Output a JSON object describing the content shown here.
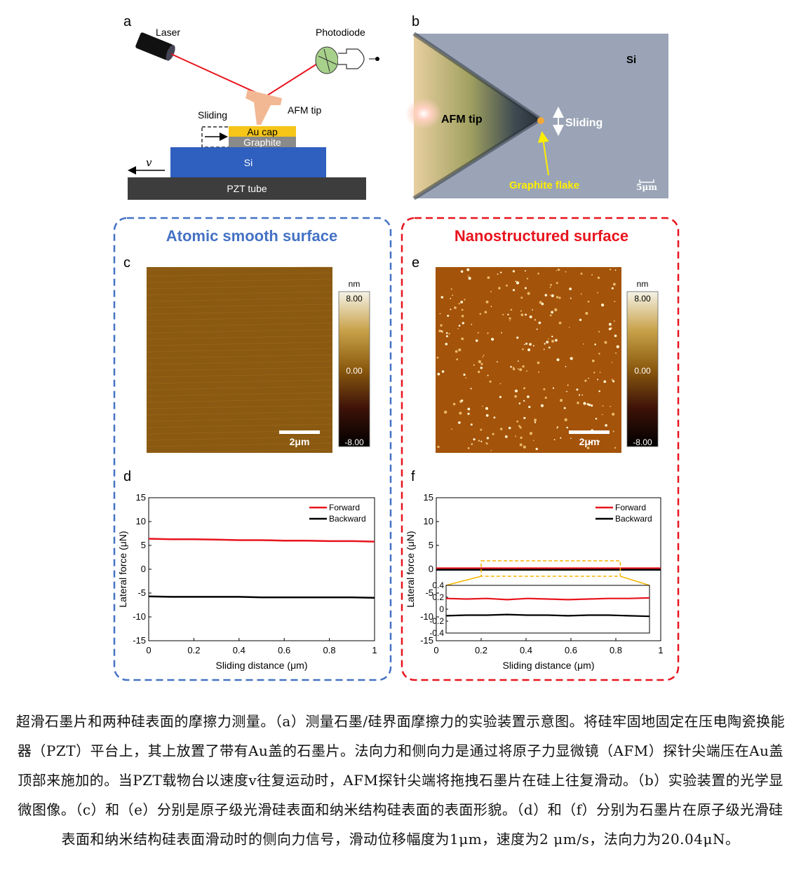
{
  "panels": {
    "a": "a",
    "b": "b",
    "c": "c",
    "d": "d",
    "e": "e",
    "f": "f"
  },
  "schematic": {
    "laser": "Laser",
    "photodiode": "Photodiode",
    "afm_tip": "AFM tip",
    "sliding": "Sliding",
    "au_cap": "Au cap",
    "graphite": "Graphite",
    "si": "Si",
    "pzt": "PZT tube",
    "velocity": "v",
    "colors": {
      "beam": "#e8141e",
      "tip": "#f2b894",
      "au": "#f5c518",
      "graphite": "#8a8a8a",
      "si": "#2f5fbf",
      "pzt": "#3d3d3d",
      "photodiode": "#a7d18a"
    }
  },
  "micrograph": {
    "si": "Si",
    "afm_tip": "AFM tip",
    "sliding": "Sliding",
    "flake": "Graphite flake",
    "scale": "5μm",
    "colors": {
      "background": "#9aa4b6",
      "flake_label": "#ffee00"
    }
  },
  "left_box": {
    "title": "Atomic smooth surface",
    "color": "#4472c4"
  },
  "right_box": {
    "title": "Nanostructured surface",
    "color": "#e8141e"
  },
  "afm_images": {
    "c": {
      "scale_bar": "2μm",
      "colorbar_unit": "nm",
      "colorbar_ticks": [
        "8.00",
        "0.00",
        "-8.00"
      ]
    },
    "e": {
      "scale_bar": "2μm",
      "colorbar_unit": "nm",
      "colorbar_ticks": [
        "8.00",
        "0.00",
        "-8.00"
      ]
    },
    "colormap": [
      "#f5f2e6",
      "#c8a24a",
      "#8b5a0e",
      "#3e1308",
      "#000000"
    ]
  },
  "chart_data": [
    {
      "panel": "d",
      "type": "line",
      "xlabel": "Sliding distance (μm)",
      "ylabel": "Lateral force (μN)",
      "xlim": [
        0,
        1
      ],
      "ylim": [
        -15,
        15
      ],
      "xticks": [
        "0",
        "0.2",
        "0.4",
        "0.6",
        "0.8",
        "1"
      ],
      "yticks": [
        "15",
        "10",
        "5",
        "0",
        "-5",
        "-10",
        "-15"
      ],
      "legend_position": "top-right",
      "series": [
        {
          "name": "Forward",
          "color": "#e8141e",
          "x": [
            0,
            0.1,
            0.2,
            0.3,
            0.4,
            0.5,
            0.6,
            0.7,
            0.8,
            0.9,
            1
          ],
          "y": [
            6.4,
            6.3,
            6.3,
            6.2,
            6.1,
            6.1,
            6.0,
            6.0,
            5.9,
            5.9,
            5.8
          ]
        },
        {
          "name": "Backward",
          "color": "#000000",
          "x": [
            0,
            0.1,
            0.2,
            0.3,
            0.4,
            0.5,
            0.6,
            0.7,
            0.8,
            0.9,
            1
          ],
          "y": [
            -5.7,
            -5.8,
            -5.8,
            -5.8,
            -5.8,
            -5.9,
            -5.9,
            -5.9,
            -5.9,
            -5.9,
            -6.0
          ]
        }
      ]
    },
    {
      "panel": "f",
      "type": "line",
      "xlabel": "Sliding distance (μm)",
      "ylabel": "Lateral force (μN)",
      "xlim": [
        0,
        1
      ],
      "ylim": [
        -15,
        15
      ],
      "xticks": [
        "0",
        "0.2",
        "0.4",
        "0.6",
        "0.8",
        "1"
      ],
      "yticks": [
        "15",
        "10",
        "5",
        "0",
        "-5",
        "-10",
        "-15"
      ],
      "legend_position": "top-right",
      "series": [
        {
          "name": "Forward",
          "color": "#e8141e",
          "x": [
            0,
            0.5,
            1
          ],
          "y": [
            0.2,
            0.2,
            0.2
          ]
        },
        {
          "name": "Backward",
          "color": "#000000",
          "x": [
            0,
            0.5,
            1
          ],
          "y": [
            -0.1,
            -0.1,
            -0.1
          ]
        }
      ],
      "inset": {
        "xlim": [
          0,
          1
        ],
        "ylim": [
          -0.4,
          0.4
        ],
        "yticks": [
          "0.4",
          "0.2",
          "0",
          "-0.2",
          "-0.4"
        ],
        "series": [
          {
            "color": "#e8141e",
            "x": [
              0,
              0.1,
              0.2,
              0.3,
              0.4,
              0.5,
              0.6,
              0.7,
              0.8,
              0.9,
              1
            ],
            "y": [
              0.18,
              0.17,
              0.18,
              0.16,
              0.18,
              0.17,
              0.16,
              0.17,
              0.18,
              0.18,
              0.19
            ]
          },
          {
            "color": "#000000",
            "x": [
              0,
              0.1,
              0.2,
              0.3,
              0.4,
              0.5,
              0.6,
              0.7,
              0.8,
              0.9,
              1
            ],
            "y": [
              -0.11,
              -0.1,
              -0.1,
              -0.09,
              -0.1,
              -0.1,
              -0.11,
              -0.1,
              -0.1,
              -0.11,
              -0.12
            ]
          }
        ]
      }
    }
  ],
  "caption": "超滑石墨片和两种硅表面的摩擦力测量。（a）测量石墨/硅界面摩擦力的实验装置示意图。将硅牢固地固定在压电陶瓷换能器（PZT）平台上，其上放置了带有Au盖的石墨片。法向力和侧向力是通过将原子力显微镜（AFM）探针尖端压在Au盖顶部来施加的。当PZT载物台以速度v往复运动时，AFM探针尖端将拖拽石墨片在硅上往复滑动。（b）实验装置的光学显微图像。（c）和（e）分别是原子级光滑硅表面和纳米结构硅表面的表面形貌。（d）和（f）分别为石墨片在原子级光滑硅表面和纳米结构硅表面滑动时的侧向力信号，滑动位移幅度为1μm，速度为2 μm/s，法向力为20.04μN。"
}
